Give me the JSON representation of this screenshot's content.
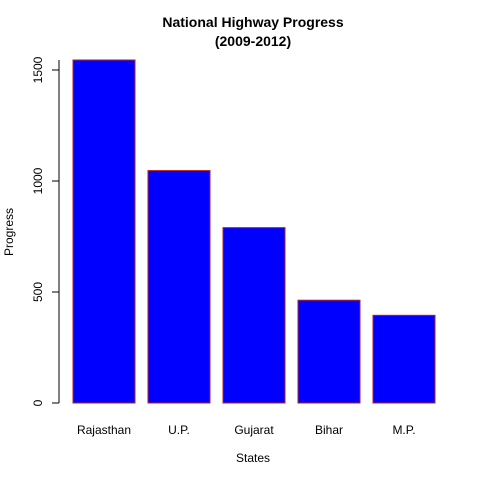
{
  "chart_data": {
    "type": "bar",
    "title": "National Highway Progress",
    "subtitle": "(2009-2012)",
    "xlabel": "States",
    "ylabel": "Progress",
    "categories": [
      "Rajasthan",
      "U.P.",
      "Gujarat",
      "Bihar",
      "M.P."
    ],
    "values": [
      1545,
      1047,
      790,
      463,
      395
    ],
    "ylim": [
      0,
      1545
    ],
    "yticks": [
      "0",
      "500",
      "1000",
      "1500"
    ],
    "grid": false,
    "legend": "none",
    "colors": {
      "bar_fill": "#0000FF",
      "bar_border": "#B22222",
      "axis": "#000000"
    }
  }
}
